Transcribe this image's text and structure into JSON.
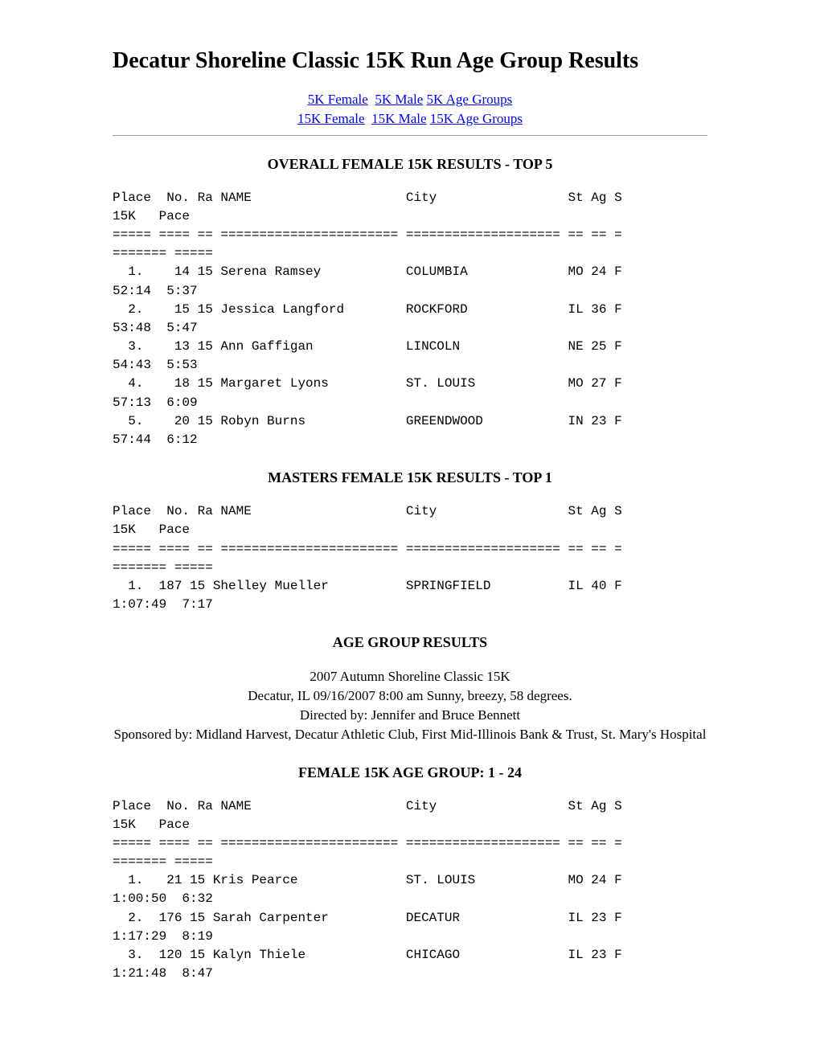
{
  "page_title": "Decatur Shoreline Classic 15K Run Age Group Results",
  "nav": {
    "link_5k_female": "5K Female",
    "link_5k_male": "5K Male",
    "link_5k_age_groups": "5K Age Groups",
    "link_15k_female": "15K Female",
    "link_15k_male": "15K Male",
    "link_15k_age_groups": "15K Age Groups"
  },
  "section1": {
    "heading": "OVERALL FEMALE 15K RESULTS - TOP 5",
    "pre": "Place  No. Ra NAME                    City                 St Ag S\n15K   Pace \n===== ==== == ======================= ==================== == == =\n======= ===== \n  1.    14 15 Serena Ramsey           COLUMBIA             MO 24 F\n52:14  5:37 \n  2.    15 15 Jessica Langford        ROCKFORD             IL 36 F\n53:48  5:47 \n  3.    13 15 Ann Gaffigan            LINCOLN              NE 25 F\n54:43  5:53 \n  4.    18 15 Margaret Lyons          ST. LOUIS            MO 27 F\n57:13  6:09 \n  5.    20 15 Robyn Burns             GREENDWOOD           IN 23 F\n57:44  6:12 "
  },
  "section2": {
    "heading": "MASTERS FEMALE 15K RESULTS - TOP 1",
    "pre": "Place  No. Ra NAME                    City                 St Ag S\n15K   Pace \n===== ==== == ======================= ==================== == == =\n======= ===== \n  1.  187 15 Shelley Mueller          SPRINGFIELD          IL 40 F\n1:07:49  7:17 "
  },
  "section3": {
    "heading": "AGE GROUP RESULTS",
    "info_line1": "2007 Autumn Shoreline Classic 15K",
    "info_line2": "Decatur, IL 09/16/2007 8:00 am Sunny, breezy, 58 degrees.",
    "info_line3": "Directed by: Jennifer and Bruce Bennett",
    "info_line4": "Sponsored by: Midland Harvest, Decatur Athletic Club, First Mid-Illinois Bank & Trust, St. Mary's Hospital"
  },
  "section4": {
    "heading": "FEMALE 15K AGE GROUP: 1 - 24",
    "pre": "Place  No. Ra NAME                    City                 St Ag S\n15K   Pace \n===== ==== == ======================= ==================== == == =\n======= ===== \n  1.   21 15 Kris Pearce              ST. LOUIS            MO 24 F\n1:00:50  6:32 \n  2.  176 15 Sarah Carpenter          DECATUR              IL 23 F\n1:17:29  8:19 \n  3.  120 15 Kalyn Thiele             CHICAGO              IL 23 F\n1:21:48  8:47 "
  },
  "colors": {
    "link_color": "#0000ee",
    "text_color": "#000000",
    "background_color": "#ffffff",
    "hr_color": "#999999"
  }
}
